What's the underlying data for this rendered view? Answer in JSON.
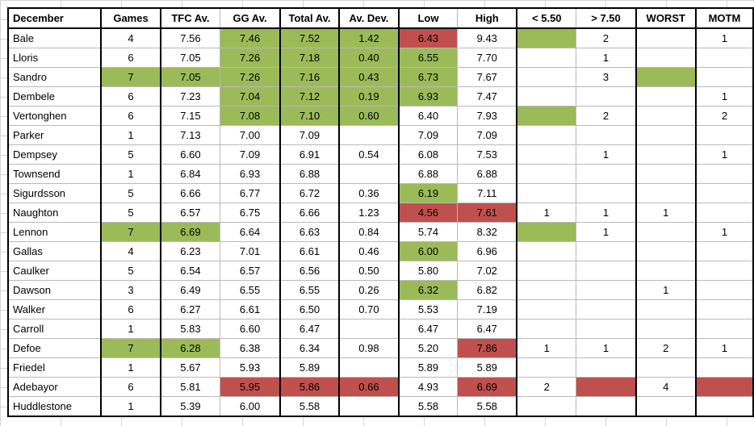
{
  "colors": {
    "good": "#9bbb59",
    "bad": "#c0504d"
  },
  "headers": [
    "December",
    "Games",
    "TFC Av.",
    "GG Av.",
    "Total Av.",
    "Av. Dev.",
    "Low",
    "High",
    "< 5.50",
    "> 7.50",
    "WORST",
    "MOTM"
  ],
  "rows": [
    [
      "Bale",
      "4",
      "7.56",
      "7.46",
      "7.52",
      "1.42",
      "6.43",
      "9.43",
      "",
      "2",
      "",
      "1"
    ],
    [
      "Lloris",
      "6",
      "7.05",
      "7.26",
      "7.18",
      "0.40",
      "6.55",
      "7.70",
      "",
      "1",
      "",
      ""
    ],
    [
      "Sandro",
      "7",
      "7.05",
      "7.26",
      "7.16",
      "0.43",
      "6.73",
      "7.67",
      "",
      "3",
      "",
      ""
    ],
    [
      "Dembele",
      "6",
      "7.23",
      "7.04",
      "7.12",
      "0.19",
      "6.93",
      "7.47",
      "",
      "",
      "",
      "1"
    ],
    [
      "Vertonghen",
      "6",
      "7.15",
      "7.08",
      "7.10",
      "0.60",
      "6.40",
      "7.93",
      "",
      "2",
      "",
      "2"
    ],
    [
      "Parker",
      "1",
      "7.13",
      "7.00",
      "7.09",
      "",
      "7.09",
      "7.09",
      "",
      "",
      "",
      ""
    ],
    [
      "Dempsey",
      "5",
      "6.60",
      "7.09",
      "6.91",
      "0.54",
      "6.08",
      "7.53",
      "",
      "1",
      "",
      "1"
    ],
    [
      "Townsend",
      "1",
      "6.84",
      "6.93",
      "6.88",
      "",
      "6.88",
      "6.88",
      "",
      "",
      "",
      ""
    ],
    [
      "Sigurdsson",
      "5",
      "6.66",
      "6.77",
      "6.72",
      "0.36",
      "6.19",
      "7.11",
      "",
      "",
      "",
      ""
    ],
    [
      "Naughton",
      "5",
      "6.57",
      "6.75",
      "6.66",
      "1.23",
      "4.56",
      "7.61",
      "1",
      "1",
      "1",
      ""
    ],
    [
      "Lennon",
      "7",
      "6.69",
      "6.64",
      "6.63",
      "0.84",
      "5.74",
      "8.32",
      "",
      "1",
      "",
      "1"
    ],
    [
      "Gallas",
      "4",
      "6.23",
      "7.01",
      "6.61",
      "0.46",
      "6.00",
      "6.96",
      "",
      "",
      "",
      ""
    ],
    [
      "Caulker",
      "5",
      "6.54",
      "6.57",
      "6.56",
      "0.50",
      "5.80",
      "7.02",
      "",
      "",
      "",
      ""
    ],
    [
      "Dawson",
      "3",
      "6.49",
      "6.55",
      "6.55",
      "0.26",
      "6.32",
      "6.82",
      "",
      "",
      "1",
      ""
    ],
    [
      "Walker",
      "6",
      "6.27",
      "6.61",
      "6.50",
      "0.70",
      "5.53",
      "7.19",
      "",
      "",
      "",
      ""
    ],
    [
      "Carroll",
      "1",
      "5.83",
      "6.60",
      "6.47",
      "",
      "6.47",
      "6.47",
      "",
      "",
      "",
      ""
    ],
    [
      "Defoe",
      "7",
      "6.28",
      "6.38",
      "6.34",
      "0.98",
      "5.20",
      "7.86",
      "1",
      "1",
      "2",
      "1"
    ],
    [
      "Friedel",
      "1",
      "5.67",
      "5.93",
      "5.89",
      "",
      "5.89",
      "5.89",
      "",
      "",
      "",
      ""
    ],
    [
      "Adebayor",
      "6",
      "5.81",
      "5.95",
      "5.86",
      "0.66",
      "4.93",
      "6.69",
      "2",
      "",
      "4",
      ""
    ],
    [
      "Huddlestone",
      "1",
      "5.39",
      "6.00",
      "5.58",
      "",
      "5.58",
      "5.58",
      "",
      "",
      "",
      ""
    ]
  ],
  "highlights": [
    [
      0,
      "",
      "",
      "g",
      "g",
      "g",
      "r",
      "",
      "g",
      "",
      "",
      "",
      ""
    ],
    [
      1,
      "",
      "",
      "g",
      "g",
      "g",
      "g",
      "",
      "",
      "",
      "",
      "",
      ""
    ],
    [
      2,
      "g",
      "g",
      "g",
      "g",
      "g",
      "g",
      "",
      "",
      "",
      "g",
      "",
      ""
    ],
    [
      3,
      "",
      "",
      "g",
      "g",
      "g",
      "g",
      "",
      "",
      "",
      "",
      "",
      ""
    ],
    [
      4,
      "",
      "",
      "g",
      "g",
      "g",
      "",
      "",
      "g",
      "",
      "",
      "",
      "g"
    ],
    [
      5,
      "",
      "",
      "",
      "",
      "",
      "",
      "",
      "",
      "",
      "",
      "",
      ""
    ],
    [
      6,
      "",
      "",
      "",
      "",
      "",
      "",
      "",
      "",
      "",
      "",
      "",
      ""
    ],
    [
      7,
      "",
      "",
      "",
      "",
      "",
      "",
      "",
      "",
      "",
      "",
      "",
      ""
    ],
    [
      8,
      "",
      "",
      "",
      "",
      "",
      "g",
      "",
      "",
      "",
      "",
      "",
      ""
    ],
    [
      9,
      "",
      "",
      "",
      "",
      "",
      "r",
      "r",
      "",
      "",
      "",
      "",
      ""
    ],
    [
      10,
      "g",
      "g",
      "",
      "",
      "",
      "",
      "",
      "g",
      "",
      "",
      "",
      ""
    ],
    [
      11,
      "",
      "",
      "",
      "",
      "",
      "g",
      "",
      "",
      "",
      "",
      "",
      ""
    ],
    [
      12,
      "",
      "",
      "",
      "",
      "",
      "",
      "",
      "",
      "",
      "",
      "",
      ""
    ],
    [
      13,
      "",
      "",
      "",
      "",
      "",
      "g",
      "",
      "",
      "",
      "",
      "",
      ""
    ],
    [
      14,
      "",
      "",
      "",
      "",
      "",
      "",
      "",
      "",
      "",
      "",
      "",
      ""
    ],
    [
      15,
      "",
      "",
      "",
      "",
      "",
      "",
      "",
      "",
      "",
      "",
      "",
      ""
    ],
    [
      16,
      "g",
      "g",
      "",
      "",
      "",
      "",
      "r",
      "",
      "",
      "",
      "",
      ""
    ],
    [
      17,
      "",
      "",
      "",
      "",
      "",
      "",
      "",
      "",
      "",
      "",
      "",
      ""
    ],
    [
      18,
      "",
      "",
      "r",
      "r",
      "r",
      "",
      "r",
      "",
      "r",
      "",
      "r",
      ""
    ],
    [
      19,
      "",
      "",
      "",
      "",
      "",
      "",
      "",
      "",
      "",
      "",
      "",
      ""
    ]
  ]
}
